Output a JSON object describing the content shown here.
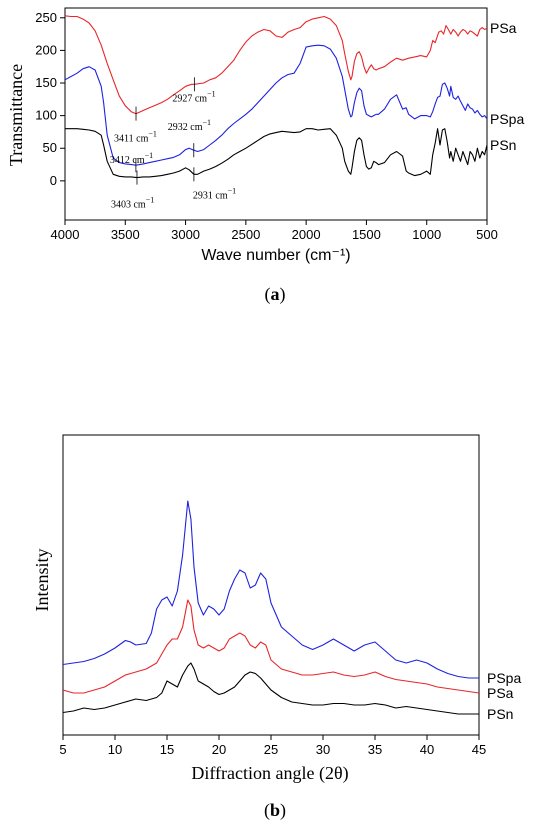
{
  "chart_data": [
    {
      "type": "line",
      "panel_label": "a",
      "xlabel": "Wave number (cm⁻¹)",
      "ylabel": "Transmittance",
      "xlim": [
        4000,
        500
      ],
      "ylim": [
        -60,
        265
      ],
      "x_reversed": true,
      "xticks": [
        4000,
        3500,
        3000,
        2500,
        2000,
        1500,
        1000,
        500
      ],
      "yticks": [
        0,
        50,
        100,
        150,
        200,
        250
      ],
      "grid": false,
      "series": [
        {
          "name": "PSa",
          "color": "#e8262b",
          "x": [
            4000,
            3950,
            3900,
            3850,
            3800,
            3750,
            3700,
            3650,
            3600,
            3550,
            3500,
            3450,
            3411,
            3350,
            3300,
            3250,
            3200,
            3150,
            3100,
            3050,
            3000,
            2950,
            2927,
            2850,
            2800,
            2750,
            2700,
            2650,
            2600,
            2550,
            2500,
            2450,
            2400,
            2350,
            2300,
            2250,
            2200,
            2150,
            2100,
            2050,
            2000,
            1950,
            1900,
            1850,
            1800,
            1750,
            1700,
            1680,
            1650,
            1630,
            1620,
            1600,
            1580,
            1560,
            1540,
            1520,
            1500,
            1480,
            1460,
            1440,
            1420,
            1400,
            1350,
            1300,
            1250,
            1200,
            1150,
            1100,
            1050,
            1000,
            970,
            950,
            930,
            900,
            880,
            860,
            840,
            820,
            800,
            780,
            760,
            740,
            720,
            700,
            680,
            660,
            640,
            620,
            600,
            580,
            560,
            540,
            520,
            500
          ],
          "y": [
            253,
            252,
            252,
            248,
            242,
            230,
            208,
            180,
            155,
            130,
            115,
            106,
            103,
            108,
            112,
            116,
            120,
            125,
            132,
            138,
            145,
            148,
            148,
            150,
            155,
            158,
            165,
            175,
            185,
            200,
            213,
            222,
            228,
            232,
            230,
            222,
            220,
            228,
            232,
            235,
            244,
            248,
            250,
            252,
            248,
            238,
            215,
            195,
            168,
            155,
            160,
            183,
            195,
            198,
            190,
            175,
            165,
            172,
            178,
            172,
            170,
            172,
            175,
            182,
            188,
            185,
            188,
            190,
            192,
            190,
            200,
            215,
            212,
            228,
            230,
            225,
            238,
            232,
            225,
            232,
            228,
            222,
            228,
            232,
            230,
            225,
            230,
            228,
            225,
            222,
            232,
            235,
            232,
            234
          ]
        },
        {
          "name": "PSpa",
          "color": "#1f22e0",
          "x": [
            4000,
            3950,
            3900,
            3850,
            3800,
            3750,
            3700,
            3680,
            3650,
            3600,
            3550,
            3500,
            3450,
            3412,
            3350,
            3300,
            3250,
            3200,
            3150,
            3100,
            3050,
            3000,
            2970,
            2932,
            2900,
            2850,
            2800,
            2750,
            2700,
            2650,
            2600,
            2550,
            2500,
            2450,
            2400,
            2350,
            2300,
            2250,
            2200,
            2150,
            2100,
            2050,
            2000,
            1950,
            1900,
            1850,
            1800,
            1750,
            1700,
            1680,
            1650,
            1630,
            1620,
            1600,
            1580,
            1560,
            1540,
            1520,
            1500,
            1480,
            1460,
            1440,
            1420,
            1400,
            1350,
            1300,
            1250,
            1200,
            1170,
            1150,
            1100,
            1050,
            1000,
            970,
            950,
            930,
            910,
            890,
            870,
            850,
            830,
            810,
            800,
            780,
            760,
            740,
            720,
            700,
            680,
            660,
            640,
            620,
            600,
            580,
            560,
            540,
            520,
            500
          ],
          "y": [
            155,
            160,
            165,
            172,
            175,
            170,
            145,
            120,
            70,
            35,
            28,
            26,
            25,
            24,
            26,
            28,
            30,
            32,
            34,
            36,
            40,
            48,
            50,
            47,
            45,
            48,
            55,
            62,
            70,
            80,
            88,
            95,
            102,
            110,
            120,
            130,
            140,
            150,
            158,
            163,
            165,
            180,
            205,
            207,
            208,
            207,
            202,
            188,
            160,
            140,
            110,
            98,
            100,
            120,
            135,
            142,
            138,
            115,
            102,
            100,
            98,
            100,
            102,
            102,
            110,
            125,
            132,
            110,
            112,
            102,
            95,
            100,
            100,
            98,
            106,
            118,
            128,
            130,
            148,
            150,
            142,
            130,
            145,
            128,
            125,
            130,
            122,
            115,
            108,
            118,
            112,
            110,
            104,
            108,
            102,
            98,
            100,
            95
          ]
        },
        {
          "name": "PSn",
          "color": "#000000",
          "x": [
            4000,
            3950,
            3900,
            3850,
            3800,
            3750,
            3700,
            3680,
            3650,
            3600,
            3550,
            3500,
            3450,
            3403,
            3350,
            3300,
            3250,
            3200,
            3150,
            3100,
            3050,
            3000,
            2970,
            2931,
            2900,
            2850,
            2800,
            2750,
            2700,
            2650,
            2600,
            2550,
            2500,
            2450,
            2400,
            2350,
            2300,
            2250,
            2200,
            2150,
            2100,
            2050,
            2000,
            1950,
            1900,
            1850,
            1800,
            1750,
            1700,
            1680,
            1650,
            1630,
            1620,
            1600,
            1580,
            1560,
            1540,
            1520,
            1500,
            1480,
            1460,
            1440,
            1420,
            1400,
            1350,
            1300,
            1250,
            1200,
            1170,
            1150,
            1100,
            1050,
            1000,
            970,
            950,
            930,
            910,
            890,
            870,
            850,
            830,
            810,
            800,
            780,
            760,
            740,
            720,
            700,
            680,
            660,
            640,
            620,
            600,
            580,
            560,
            540,
            520,
            500
          ],
          "y": [
            80,
            80,
            80,
            79,
            78,
            76,
            70,
            55,
            30,
            10,
            7,
            6,
            6,
            5,
            6,
            6,
            7,
            8,
            10,
            12,
            15,
            20,
            17,
            10,
            10,
            15,
            18,
            22,
            27,
            33,
            40,
            45,
            50,
            56,
            62,
            68,
            72,
            74,
            76,
            75,
            74,
            75,
            80,
            80,
            78,
            79,
            80,
            70,
            50,
            30,
            15,
            10,
            20,
            45,
            62,
            66,
            62,
            40,
            22,
            18,
            20,
            30,
            28,
            25,
            28,
            40,
            45,
            38,
            15,
            12,
            8,
            10,
            15,
            10,
            40,
            58,
            80,
            55,
            78,
            80,
            60,
            35,
            45,
            30,
            50,
            40,
            30,
            45,
            35,
            25,
            45,
            40,
            30,
            50,
            35,
            45,
            40,
            55
          ]
        }
      ],
      "annotations": [
        {
          "text": "3411 cm",
          "sup": "−1",
          "x": 3411,
          "y": 103
        },
        {
          "text": "2927 cm",
          "sup": "−1",
          "x": 2927,
          "y": 148
        },
        {
          "text": "3412 cm",
          "sup": "−1",
          "x": 3412,
          "y": 24
        },
        {
          "text": "2932 cm",
          "sup": "−1",
          "x": 2932,
          "y": 47
        },
        {
          "text": "3403 cm",
          "sup": "−1",
          "x": 3403,
          "y": 5
        },
        {
          "text": "2931 cm",
          "sup": "−1",
          "x": 2931,
          "y": 10
        }
      ]
    },
    {
      "type": "line",
      "panel_label": "b",
      "xlabel": "Diffraction angle (2θ)",
      "ylabel": "Intensity",
      "xlim": [
        5,
        45
      ],
      "ylim": [
        0,
        100
      ],
      "xticks": [
        5,
        10,
        15,
        20,
        25,
        30,
        35,
        40,
        45
      ],
      "yticks": [],
      "grid": false,
      "series": [
        {
          "name": "PSpa",
          "color": "#1f22e0",
          "x": [
            5,
            6,
            7,
            8,
            9,
            10,
            11,
            11.5,
            12,
            13,
            13.5,
            14,
            14.5,
            15,
            15.5,
            16,
            16.5,
            17,
            17.3,
            17.6,
            18,
            18.5,
            19,
            19.5,
            20,
            20.5,
            21,
            21.5,
            22,
            22.5,
            23,
            23.5,
            24,
            24.5,
            25,
            26,
            27,
            28,
            29,
            30,
            31,
            32,
            33,
            34,
            35,
            36,
            37,
            38,
            39,
            40,
            41,
            42,
            43,
            44,
            45
          ],
          "y": [
            23.5,
            24,
            24.5,
            25.5,
            27,
            29,
            31.5,
            31,
            30,
            30.5,
            34,
            42,
            45,
            46,
            43,
            48,
            60,
            78,
            72,
            56,
            44,
            40,
            43,
            42,
            40,
            42,
            48,
            52,
            55,
            54,
            49,
            50,
            54,
            52,
            44,
            36,
            33,
            30,
            28.5,
            30,
            32,
            30,
            28,
            30,
            31,
            28,
            25,
            24,
            25,
            24,
            22,
            20.5,
            19.5,
            19,
            19
          ]
        },
        {
          "name": "PSa",
          "color": "#e8262b",
          "x": [
            5,
            6,
            7,
            8,
            9,
            10,
            11,
            12,
            13,
            14,
            15,
            15.5,
            16,
            16.5,
            17,
            17.3,
            17.6,
            18,
            18.5,
            19,
            19.5,
            20,
            20.5,
            21,
            21.5,
            22,
            22.5,
            23,
            23.5,
            24,
            24.5,
            25,
            26,
            27,
            28,
            29,
            30,
            31,
            32,
            33,
            34,
            35,
            36,
            37,
            38,
            39,
            40,
            41,
            42,
            43,
            44,
            45
          ],
          "y": [
            15,
            14,
            14,
            15,
            16,
            18,
            20,
            21,
            22,
            24,
            30,
            32,
            32,
            36,
            45,
            43,
            35,
            30,
            29,
            30,
            29,
            28,
            29,
            32,
            33,
            34,
            33,
            30,
            29,
            31,
            30,
            25,
            22,
            21,
            20,
            20,
            20.5,
            21,
            20,
            19.5,
            20,
            21,
            19.5,
            18.5,
            18,
            17.5,
            17,
            16,
            15.5,
            15,
            14.5,
            14
          ]
        },
        {
          "name": "PSn",
          "color": "#000000",
          "x": [
            5,
            6,
            7,
            8,
            9,
            10,
            11,
            12,
            13,
            14,
            14.5,
            15,
            15.5,
            16,
            16.5,
            17,
            17.3,
            17.6,
            18,
            18.5,
            19,
            19.5,
            20,
            20.5,
            21,
            21.5,
            22,
            22.5,
            23,
            23.5,
            24,
            24.5,
            25,
            26,
            27,
            28,
            29,
            30,
            31,
            32,
            33,
            34,
            35,
            36,
            37,
            38,
            39,
            40,
            41,
            42,
            43,
            44,
            45
          ],
          "y": [
            7.5,
            8,
            9,
            8.5,
            9,
            10,
            11,
            12,
            11.5,
            12.5,
            14,
            18,
            17,
            16,
            20,
            23,
            24,
            22,
            18,
            17,
            16,
            14.5,
            13.5,
            14,
            15,
            16,
            18,
            20,
            21,
            20.5,
            19,
            17,
            15,
            12.5,
            11,
            10.5,
            10,
            10,
            10.5,
            10.5,
            10,
            10,
            10.5,
            10,
            9,
            9.5,
            9,
            8.5,
            8,
            7.5,
            7,
            7,
            7
          ]
        }
      ]
    }
  ]
}
